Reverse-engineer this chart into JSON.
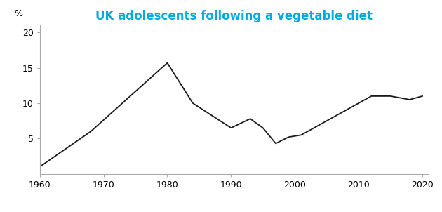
{
  "title": "UK adolescents following a vegetable diet",
  "ylabel": "%",
  "x_values": [
    1960,
    1968,
    1980,
    1984,
    1990,
    1993,
    1995,
    1997,
    1999,
    2001,
    2012,
    2015,
    2018,
    2020
  ],
  "y_values": [
    1,
    6,
    15.7,
    10,
    6.5,
    7.8,
    6.5,
    4.3,
    5.2,
    5.5,
    11.0,
    11.0,
    10.5,
    11.0
  ],
  "xlim": [
    1960,
    2021
  ],
  "ylim": [
    0,
    21
  ],
  "xticks": [
    1960,
    1970,
    1980,
    1990,
    2000,
    2010,
    2020
  ],
  "yticks": [
    5,
    10,
    15,
    20
  ],
  "line_color": "#1a1a1a",
  "title_color": "#00aadd",
  "title_fontsize": 12,
  "ylabel_fontsize": 9,
  "tick_fontsize": 9,
  "background_color": "#ffffff",
  "spine_color": "#aaaaaa",
  "grid_color": "#dddddd"
}
